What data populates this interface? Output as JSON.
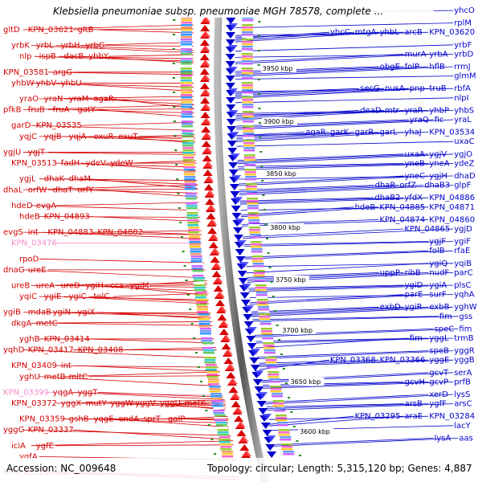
{
  "title": "Klebsiella pneumoniae subsp. pneumoniae MGH 78578, complete ...",
  "footer": {
    "accession": "Accession: NC_009648",
    "stats": "Topology: circular; Length: 5,315,120 bp; Genes: 4,887"
  },
  "colors": {
    "forward": "#d40000",
    "reverse": "#0000cc",
    "highlight": "#f28cc8",
    "marker": "#228b22"
  },
  "kbp_labels": [
    "3950 kbp",
    "3900 kbp",
    "3850 kbp",
    "3800 kbp",
    "3750 kbp",
    "3700 kbp",
    "3650 kbp",
    "3600 kbp"
  ],
  "left_labels": [
    {
      "t": "gltD"
    },
    {
      "t": "KPN_03621"
    },
    {
      "t": "gltB"
    },
    {
      "t": "yrbK"
    },
    {
      "t": "yrbL"
    },
    {
      "t": "yrbH"
    },
    {
      "t": "yrbG"
    },
    {
      "t": "nlp"
    },
    {
      "t": "ispB"
    },
    {
      "t": "dacB"
    },
    {
      "t": "yhbY"
    },
    {
      "t": "KPN_03581"
    },
    {
      "t": "argG"
    },
    {
      "t": "yhbW"
    },
    {
      "t": "yhbV"
    },
    {
      "t": "yhbU"
    },
    {
      "t": "yraO"
    },
    {
      "t": "yraN"
    },
    {
      "t": "yraM"
    },
    {
      "t": "agaR"
    },
    {
      "t": "pfkB"
    },
    {
      "t": "fruB"
    },
    {
      "t": "fruA"
    },
    {
      "t": "gatY"
    },
    {
      "t": "garD"
    },
    {
      "t": "KPN_03535"
    },
    {
      "t": "yqjC"
    },
    {
      "t": "yqjB"
    },
    {
      "t": "yqjA"
    },
    {
      "t": "exuR"
    },
    {
      "t": "exuT"
    },
    {
      "t": "ygjU"
    },
    {
      "t": "ygjT"
    },
    {
      "t": "KPN_03513"
    },
    {
      "t": "fadH"
    },
    {
      "t": "ydeV"
    },
    {
      "t": "ydeW"
    },
    {
      "t": "ygjL"
    },
    {
      "t": "dhaK"
    },
    {
      "t": "dhaM"
    },
    {
      "t": "dhaL"
    },
    {
      "t": "orfW"
    },
    {
      "t": "dhaT"
    },
    {
      "t": "orfY"
    },
    {
      "t": "hdeD"
    },
    {
      "t": "evgA"
    },
    {
      "t": "hdeB"
    },
    {
      "t": "KPN_04893"
    },
    {
      "t": "evgS"
    },
    {
      "t": "int"
    },
    {
      "t": "KPN_04883"
    },
    {
      "t": "KPN_04882"
    },
    {
      "t": "KPN_03476",
      "pink": true
    },
    {
      "t": "rpoD"
    },
    {
      "t": "dnaG"
    },
    {
      "t": "ureE"
    },
    {
      "t": "ureB"
    },
    {
      "t": "ureA"
    },
    {
      "t": "ureD"
    },
    {
      "t": "ygiH"
    },
    {
      "t": "cca"
    },
    {
      "t": "ygiM"
    },
    {
      "t": "yqiC"
    },
    {
      "t": "ygiE"
    },
    {
      "t": "ygiC"
    },
    {
      "t": "tolC"
    },
    {
      "t": "ygiB"
    },
    {
      "t": "mdaB"
    },
    {
      "t": "ygiN"
    },
    {
      "t": "ygiX"
    },
    {
      "t": "dkgA"
    },
    {
      "t": "metC"
    },
    {
      "t": "yghB"
    },
    {
      "t": "KPN_03414"
    },
    {
      "t": "yqhD"
    },
    {
      "t": "KPN_03417"
    },
    {
      "t": "KPN_03408"
    },
    {
      "t": "KPN_03409"
    },
    {
      "t": "int"
    },
    {
      "t": "yghU"
    },
    {
      "t": "metB"
    },
    {
      "t": "mltC"
    },
    {
      "t": "KPN_03399",
      "pink": true
    },
    {
      "t": "yqgA"
    },
    {
      "t": "yggT"
    },
    {
      "t": "KPN_03372"
    },
    {
      "t": "yggX"
    },
    {
      "t": "mutY"
    },
    {
      "t": "yggW"
    },
    {
      "t": "yggV"
    },
    {
      "t": "yggU"
    },
    {
      "t": "metK"
    },
    {
      "t": "KPN_03359"
    },
    {
      "t": "gshB"
    },
    {
      "t": "yqgE"
    },
    {
      "t": "endA"
    },
    {
      "t": "sprT"
    },
    {
      "t": "galP"
    },
    {
      "t": "yggG"
    },
    {
      "t": "KPN_03337"
    },
    {
      "t": "iciA"
    },
    {
      "t": "ygfE"
    },
    {
      "t": "ygfA"
    },
    {
      "t": "KPN_03329"
    },
    {
      "t": "fldB"
    },
    {
      "t": "idi"
    }
  ],
  "right_labels": [
    {
      "t": "yhcO"
    },
    {
      "t": "rplM"
    },
    {
      "t": "yhcC"
    },
    {
      "t": "mtgA"
    },
    {
      "t": "yhbL"
    },
    {
      "t": "arcB"
    },
    {
      "t": "KPN_03620"
    },
    {
      "t": "yrbF"
    },
    {
      "t": "murA"
    },
    {
      "t": "yrbA"
    },
    {
      "t": "yrbD"
    },
    {
      "t": "obgE"
    },
    {
      "t": "folP"
    },
    {
      "t": "hflB"
    },
    {
      "t": "rrmJ"
    },
    {
      "t": "glmM"
    },
    {
      "t": "secG"
    },
    {
      "t": "nusA"
    },
    {
      "t": "pnp"
    },
    {
      "t": "truB"
    },
    {
      "t": "rbfA"
    },
    {
      "t": "nlpI"
    },
    {
      "t": "deaD"
    },
    {
      "t": "mtr"
    },
    {
      "t": "yraR"
    },
    {
      "t": "yhbP"
    },
    {
      "t": "yhbS"
    },
    {
      "t": "yraQ"
    },
    {
      "t": "fic"
    },
    {
      "t": "yraL"
    },
    {
      "t": "agaR"
    },
    {
      "t": "garK"
    },
    {
      "t": "garR"
    },
    {
      "t": "garL"
    },
    {
      "t": "yhaJ"
    },
    {
      "t": "KPN_03534"
    },
    {
      "t": "uxaC"
    },
    {
      "t": "uxaA"
    },
    {
      "t": "ygjV"
    },
    {
      "t": "ygjO"
    },
    {
      "t": "yneB"
    },
    {
      "t": "yneA"
    },
    {
      "t": "ydeZ"
    },
    {
      "t": "yneC"
    },
    {
      "t": "ygjH"
    },
    {
      "t": "dhaD"
    },
    {
      "t": "dhaR"
    },
    {
      "t": "orfZ"
    },
    {
      "t": "dhaB3"
    },
    {
      "t": "glpF"
    },
    {
      "t": "dhaB2"
    },
    {
      "t": "yfdX"
    },
    {
      "t": "KPN_04886"
    },
    {
      "t": "hdeB"
    },
    {
      "t": "KPN_04885"
    },
    {
      "t": "KPN_04871"
    },
    {
      "t": "KPN_04874"
    },
    {
      "t": "KPN_04860"
    },
    {
      "t": "KPN_04865"
    },
    {
      "t": "ygjD"
    },
    {
      "t": "ygjF"
    },
    {
      "t": "ygiF"
    },
    {
      "t": "folB"
    },
    {
      "t": "rfaE"
    },
    {
      "t": "ygiQ"
    },
    {
      "t": "yqiB"
    },
    {
      "t": "uppP"
    },
    {
      "t": "ribB"
    },
    {
      "t": "nudF"
    },
    {
      "t": "parC"
    },
    {
      "t": "ygiD"
    },
    {
      "t": "ygiA"
    },
    {
      "t": "plsC"
    },
    {
      "t": "parE"
    },
    {
      "t": "surF"
    },
    {
      "t": "yqhA"
    },
    {
      "t": "exbD"
    },
    {
      "t": "ygiR"
    },
    {
      "t": "exbB"
    },
    {
      "t": "yghW"
    },
    {
      "t": "fim"
    },
    {
      "t": "gss"
    },
    {
      "t": "speC"
    },
    {
      "t": "fim"
    },
    {
      "t": "fim"
    },
    {
      "t": "yggL"
    },
    {
      "t": "trmB"
    },
    {
      "t": "speB"
    },
    {
      "t": "yggR"
    },
    {
      "t": "KPN_03368"
    },
    {
      "t": "KPN_03366"
    },
    {
      "t": "yggE"
    },
    {
      "t": "yggB"
    },
    {
      "t": "gcvT"
    },
    {
      "t": "serA"
    },
    {
      "t": "gcvH"
    },
    {
      "t": "gcvP"
    },
    {
      "t": "prfB"
    },
    {
      "t": "xerD"
    },
    {
      "t": "lysS"
    },
    {
      "t": "arsB"
    },
    {
      "t": "ygfF"
    },
    {
      "t": "arsC"
    },
    {
      "t": "KPN_03295"
    },
    {
      "t": "araE"
    },
    {
      "t": "KPN_03284"
    },
    {
      "t": "lacY"
    },
    {
      "t": "lysA"
    },
    {
      "t": "aas"
    }
  ]
}
